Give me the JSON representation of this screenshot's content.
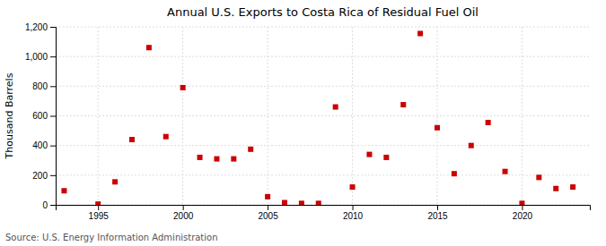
{
  "chart_data": {
    "type": "scatter",
    "title": "Annual U.S. Exports to Costa Rica of Residual Fuel Oil",
    "ylabel": "Thousand Barrels",
    "source": "Source: U.S. Energy Information Administration",
    "x": [
      1993,
      1995,
      1996,
      1997,
      1998,
      1999,
      2000,
      2001,
      2002,
      2003,
      2004,
      2005,
      2006,
      2007,
      2008,
      2009,
      2010,
      2011,
      2012,
      2013,
      2014,
      2015,
      2016,
      2017,
      2018,
      2019,
      2020,
      2021,
      2022,
      2023
    ],
    "values": [
      95,
      5,
      155,
      440,
      1060,
      460,
      790,
      320,
      310,
      310,
      375,
      55,
      15,
      10,
      10,
      660,
      120,
      340,
      320,
      675,
      1155,
      520,
      210,
      400,
      555,
      225,
      10,
      185,
      110,
      120
    ],
    "color": "#cc0000",
    "marker": "square",
    "xlim": [
      1992.5,
      2024
    ],
    "ylim": [
      0,
      1200
    ],
    "xticks": [
      1995,
      2000,
      2005,
      2010,
      2015,
      2020
    ],
    "yticks": [
      0,
      200,
      400,
      600,
      800,
      {
        "value": 1000,
        "label": "1,000"
      },
      {
        "value": 1200,
        "label": "1,200"
      }
    ],
    "grid": true
  }
}
